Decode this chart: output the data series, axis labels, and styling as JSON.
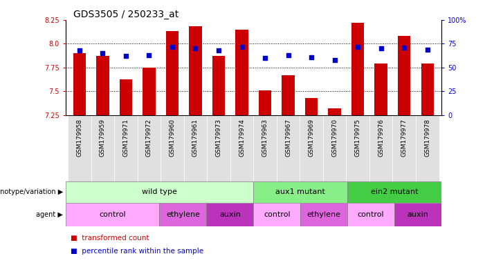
{
  "title": "GDS3505 / 250233_at",
  "samples": [
    "GSM179958",
    "GSM179959",
    "GSM179971",
    "GSM179972",
    "GSM179960",
    "GSM179961",
    "GSM179973",
    "GSM179974",
    "GSM179963",
    "GSM179967",
    "GSM179969",
    "GSM179970",
    "GSM179975",
    "GSM179976",
    "GSM179977",
    "GSM179978"
  ],
  "bar_values": [
    7.9,
    7.87,
    7.63,
    7.75,
    8.13,
    8.18,
    7.87,
    8.15,
    7.51,
    7.67,
    7.43,
    7.32,
    8.22,
    7.79,
    8.08,
    7.79
  ],
  "dot_values": [
    68,
    65,
    62,
    63,
    72,
    70,
    68,
    72,
    60,
    63,
    61,
    58,
    72,
    70,
    71,
    69
  ],
  "ymin": 7.25,
  "ymax": 8.25,
  "yticks": [
    7.25,
    7.5,
    7.75,
    8.0,
    8.25
  ],
  "y2ticks": [
    0,
    25,
    50,
    75,
    100
  ],
  "y2labels": [
    "0",
    "25",
    "50",
    "75",
    "100%"
  ],
  "bar_color": "#CC0000",
  "dot_color": "#0000CC",
  "genotype_groups": [
    {
      "label": "wild type",
      "start": 0,
      "end": 8,
      "color": "#CCFFCC"
    },
    {
      "label": "aux1 mutant",
      "start": 8,
      "end": 12,
      "color": "#88EE88"
    },
    {
      "label": "ein2 mutant",
      "start": 12,
      "end": 16,
      "color": "#44CC44"
    }
  ],
  "agent_groups": [
    {
      "label": "control",
      "start": 0,
      "end": 4,
      "color": "#FFAAFF"
    },
    {
      "label": "ethylene",
      "start": 4,
      "end": 6,
      "color": "#DD66DD"
    },
    {
      "label": "auxin",
      "start": 6,
      "end": 8,
      "color": "#BB33BB"
    },
    {
      "label": "control",
      "start": 8,
      "end": 10,
      "color": "#FFAAFF"
    },
    {
      "label": "ethylene",
      "start": 10,
      "end": 12,
      "color": "#DD66DD"
    },
    {
      "label": "control",
      "start": 12,
      "end": 14,
      "color": "#FFAAFF"
    },
    {
      "label": "auxin",
      "start": 14,
      "end": 16,
      "color": "#BB33BB"
    }
  ],
  "legend_items": [
    {
      "label": "transformed count",
      "color": "#CC0000"
    },
    {
      "label": "percentile rank within the sample",
      "color": "#0000CC"
    }
  ],
  "label_fontsize": 8,
  "tick_fontsize": 7,
  "sample_fontsize": 6.5,
  "title_fontsize": 10
}
